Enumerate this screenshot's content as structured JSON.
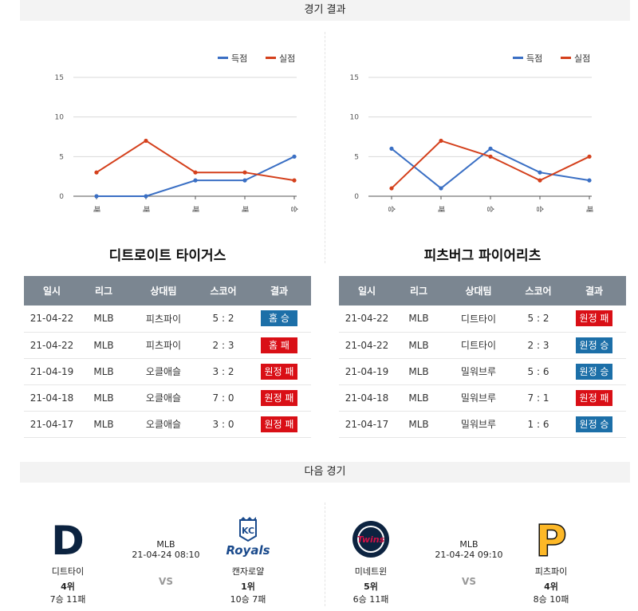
{
  "sections": {
    "results": "경기 결과",
    "next": "다음 경기"
  },
  "legend": {
    "scored": "득점",
    "allowed": "실점"
  },
  "colors": {
    "scored": "#3a6fc4",
    "allowed": "#d4401c",
    "win": "#1c6fa8",
    "loss": "#d90f16",
    "table_header": "#7b8691"
  },
  "chart_data": [
    {
      "type": "line",
      "categories": [
        "패",
        "패",
        "패",
        "패",
        "승"
      ],
      "series": [
        {
          "name": "득점",
          "values": [
            0,
            0,
            2,
            2,
            5
          ]
        },
        {
          "name": "실점",
          "values": [
            3,
            7,
            3,
            3,
            2
          ]
        }
      ],
      "ylim": [
        0,
        15
      ],
      "yticks": [
        "0",
        "5",
        "10",
        "15"
      ],
      "grid": true,
      "legend": "top-right"
    },
    {
      "type": "line",
      "categories": [
        "승",
        "패",
        "승",
        "승",
        "패"
      ],
      "series": [
        {
          "name": "득점",
          "values": [
            6,
            1,
            6,
            3,
            2
          ]
        },
        {
          "name": "실점",
          "values": [
            1,
            7,
            5,
            2,
            5
          ]
        }
      ],
      "ylim": [
        0,
        15
      ],
      "yticks": [
        "0",
        "5",
        "10",
        "15"
      ],
      "grid": true,
      "legend": "top-right"
    }
  ],
  "table_headers": [
    "일시",
    "리그",
    "상대팀",
    "스코어",
    "결과"
  ],
  "teams": [
    {
      "name": "디트로이트 타이거스",
      "rows": [
        {
          "date": "21-04-22",
          "league": "MLB",
          "opponent": "피츠파이",
          "score": "5 : 2",
          "result": "홈 승",
          "win": true
        },
        {
          "date": "21-04-22",
          "league": "MLB",
          "opponent": "피츠파이",
          "score": "2 : 3",
          "result": "홈 패",
          "win": false
        },
        {
          "date": "21-04-19",
          "league": "MLB",
          "opponent": "오클애슬",
          "score": "3 : 2",
          "result": "원정 패",
          "win": false
        },
        {
          "date": "21-04-18",
          "league": "MLB",
          "opponent": "오클애슬",
          "score": "7 : 0",
          "result": "원정 패",
          "win": false
        },
        {
          "date": "21-04-17",
          "league": "MLB",
          "opponent": "오클애슬",
          "score": "3 : 0",
          "result": "원정 패",
          "win": false
        }
      ]
    },
    {
      "name": "피츠버그 파이어리츠",
      "rows": [
        {
          "date": "21-04-22",
          "league": "MLB",
          "opponent": "디트타이",
          "score": "5 : 2",
          "result": "원정 패",
          "win": false
        },
        {
          "date": "21-04-22",
          "league": "MLB",
          "opponent": "디트타이",
          "score": "2 : 3",
          "result": "원정 승",
          "win": true
        },
        {
          "date": "21-04-19",
          "league": "MLB",
          "opponent": "밀워브루",
          "score": "5 : 6",
          "result": "원정 승",
          "win": true
        },
        {
          "date": "21-04-18",
          "league": "MLB",
          "opponent": "밀워브루",
          "score": "7 : 1",
          "result": "원정 패",
          "win": false
        },
        {
          "date": "21-04-17",
          "league": "MLB",
          "opponent": "밀워브루",
          "score": "1 : 6",
          "result": "원정 승",
          "win": true
        }
      ]
    }
  ],
  "next_games": [
    {
      "league": "MLB",
      "datetime": "21-04-24 08:10",
      "vs": "VS",
      "home": {
        "name": "디트타이",
        "rank": "4위",
        "record": "7승 11패",
        "logo_icon": "tigers-logo-icon",
        "logo_text": "D"
      },
      "away": {
        "name": "캔자로얄",
        "rank": "1위",
        "record": "10승 7패",
        "logo_icon": "royals-logo-icon",
        "logo_text": "KC",
        "logo_script": "Royals"
      }
    },
    {
      "league": "MLB",
      "datetime": "21-04-24 09:10",
      "vs": "VS",
      "home": {
        "name": "미네트윈",
        "rank": "5위",
        "record": "6승 11패",
        "logo_icon": "twins-logo-icon",
        "logo_text": "Twins"
      },
      "away": {
        "name": "피츠파이",
        "rank": "4위",
        "record": "8승 10패",
        "logo_icon": "pirates-logo-icon",
        "logo_text": "P"
      }
    }
  ]
}
